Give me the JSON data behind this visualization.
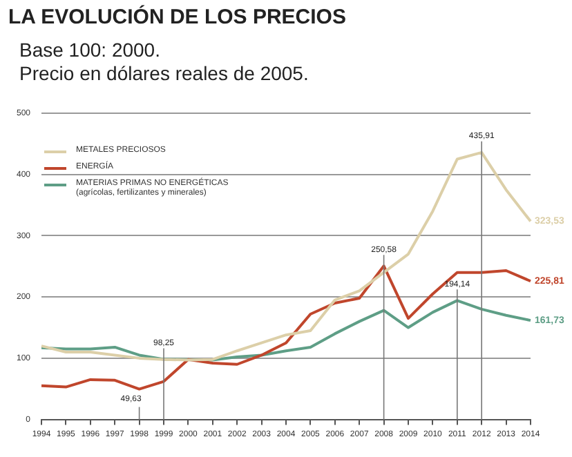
{
  "chart_data": {
    "type": "line",
    "title": "LA EVOLUCIÓN DE LOS PRECIOS",
    "subtitle": "Base 100: 2000.\nPrecio en dólares reales de 2005.",
    "categories": [
      "1994",
      "1995",
      "1996",
      "1997",
      "1998",
      "1999",
      "2000",
      "2001",
      "2002",
      "2003",
      "2004",
      "2005",
      "2006",
      "2007",
      "2008",
      "2009",
      "2010",
      "2011",
      "2012",
      "2013",
      "2014"
    ],
    "series": [
      {
        "name": "METALES PRECIOSOS",
        "color": "#dccfa8",
        "values": [
          120,
          110,
          110,
          105,
          100,
          98,
          97,
          98,
          112,
          125,
          138,
          145,
          195,
          210,
          240,
          270,
          340,
          425,
          435.91,
          375,
          323.53
        ]
      },
      {
        "name": "ENERGÍA",
        "color": "#c0462c",
        "values": [
          55,
          53,
          65,
          64,
          49.63,
          62,
          98,
          92,
          90,
          105,
          125,
          172,
          190,
          198,
          250.58,
          165,
          205,
          240,
          240,
          243,
          225.81
        ]
      },
      {
        "name": "MATERIAS PRIMAS NO ENERGÉTICAS\n(agrícolas, fertilizantes y minerales)",
        "color": "#5e9e86",
        "values": [
          117,
          115,
          115,
          118,
          105,
          98.25,
          98,
          97,
          102,
          105,
          112,
          118,
          140,
          160,
          178,
          150,
          175,
          194.14,
          180,
          170,
          161.73
        ]
      }
    ],
    "ylim": [
      0,
      500
    ],
    "yticks": [
      0,
      100,
      200,
      300,
      400,
      500
    ],
    "grid": "y",
    "legend": "top left",
    "marker": "none",
    "line_style": "solid",
    "ref_lines": [
      {
        "axis": "x",
        "value": "1999"
      },
      {
        "axis": "x",
        "value": "2008"
      },
      {
        "axis": "x",
        "value": "2011"
      },
      {
        "axis": "x",
        "value": "2012"
      }
    ],
    "annotations": [
      {
        "text": "49,63",
        "x": "1998",
        "y": 49.63
      },
      {
        "text": "98,25",
        "x": "1999",
        "y": 98.25
      },
      {
        "text": "250,58",
        "x": "2008",
        "y": 250.58
      },
      {
        "text": "194,14",
        "x": "2011",
        "y": 194.14
      },
      {
        "text": "435,91",
        "x": "2012",
        "y": 435.91
      },
      {
        "text": "323,53",
        "x": "2014",
        "y": 323.53
      },
      {
        "text": "225,81",
        "x": "2014",
        "y": 225.81
      },
      {
        "text": "161,73",
        "x": "2014",
        "y": 161.73
      }
    ]
  }
}
